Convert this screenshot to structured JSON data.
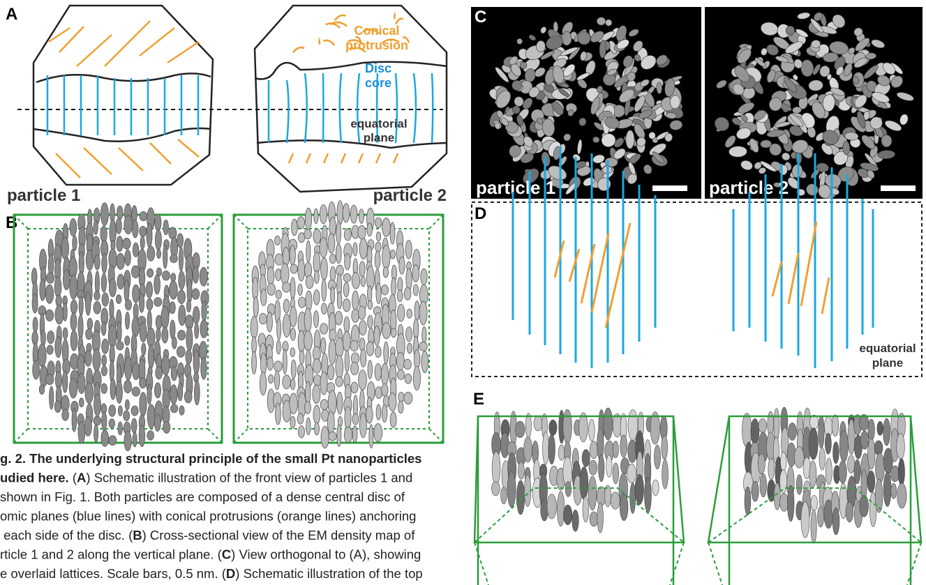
{
  "panels": {
    "a": {
      "label": "A",
      "conical": [
        "Conical",
        "protrusion"
      ],
      "disc": [
        "Disc",
        "core"
      ],
      "equatorial": [
        "equatorial",
        "plane"
      ],
      "particle1": "particle 1",
      "particle2": "particle 2"
    },
    "b": {
      "label": "B"
    },
    "c": {
      "label": "C",
      "particle1": "particle 1",
      "particle2": "particle 2"
    },
    "d": {
      "label": "D",
      "equatorial": [
        "equatorial",
        "plane"
      ]
    },
    "e": {
      "label": "E"
    }
  },
  "caption": {
    "lines": [
      [
        {
          "text": "g. 2. The underlying structural principle of the small Pt nanoparticles",
          "bold": true
        }
      ],
      [
        {
          "text": "udied here.",
          "bold": true
        },
        {
          "text": " ("
        },
        {
          "text": "A",
          "bold": true
        },
        {
          "text": ") Schematic illustration of the front view of particles 1 and"
        }
      ],
      [
        {
          "text": "shown in Fig. 1. Both particles are composed of a dense central disc of"
        }
      ],
      [
        {
          "text": "omic planes (blue lines) with conical protrusions (orange lines) anchoring"
        }
      ],
      [
        {
          "text": " each side of the disc. ("
        },
        {
          "text": "B",
          "bold": true
        },
        {
          "text": ") Cross-sectional view of the EM density map of"
        }
      ],
      [
        {
          "text": "rticle 1 and 2 along the vertical plane. ("
        },
        {
          "text": "C",
          "bold": true
        },
        {
          "text": ") View orthogonal to (A), showing"
        }
      ],
      [
        {
          "text": "e overlaid lattices. Scale bars, 0.5 nm. ("
        },
        {
          "text": "D",
          "bold": true
        },
        {
          "text": ") Schematic illustration of the top"
        }
      ]
    ]
  }
}
